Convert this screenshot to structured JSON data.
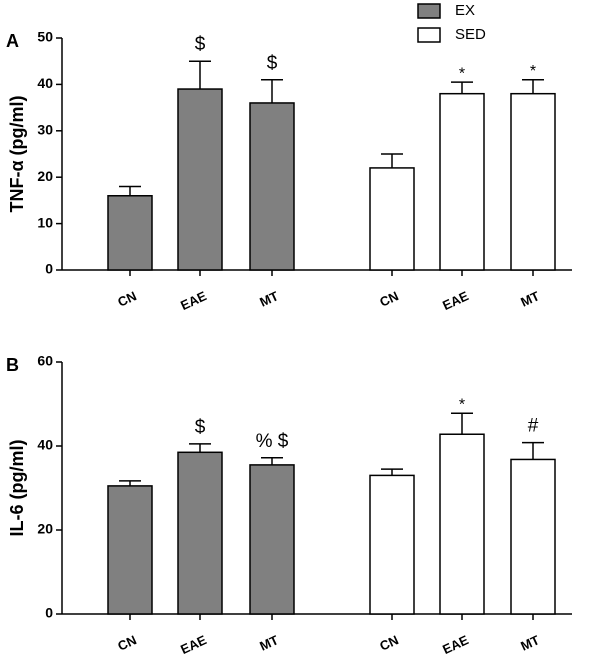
{
  "chart_data": [
    {
      "type": "bar",
      "panel": "A",
      "ylabel": "TNF-α (pg/ml)",
      "categories": [
        "CN",
        "EAE",
        "MT",
        "CN",
        "EAE",
        "MT"
      ],
      "ylim": [
        0,
        50
      ],
      "yticks": [
        0,
        10,
        20,
        30,
        40,
        50
      ],
      "series": [
        {
          "name": "EX",
          "color": "#808080",
          "values": [
            16,
            39,
            36,
            null,
            null,
            null
          ],
          "errors": [
            2,
            6,
            5,
            null,
            null,
            null
          ],
          "annotations": [
            null,
            "$",
            "$",
            null,
            null,
            null
          ]
        },
        {
          "name": "SED",
          "color": "#ffffff",
          "values": [
            null,
            null,
            null,
            22,
            38,
            38
          ],
          "errors": [
            null,
            null,
            null,
            3,
            2.5,
            3
          ],
          "annotations": [
            null,
            null,
            null,
            null,
            "*",
            "*"
          ]
        }
      ]
    },
    {
      "type": "bar",
      "panel": "B",
      "ylabel": "IL-6 (pg/ml)",
      "categories": [
        "CN",
        "EAE",
        "MT",
        "CN",
        "EAE",
        "MT"
      ],
      "ylim": [
        0,
        60
      ],
      "yticks": [
        0,
        20,
        40,
        60
      ],
      "series": [
        {
          "name": "EX",
          "color": "#808080",
          "values": [
            30.5,
            38.5,
            35.5,
            null,
            null,
            null
          ],
          "errors": [
            1.2,
            2,
            1.7,
            null,
            null,
            null
          ],
          "annotations": [
            null,
            "$",
            "% $",
            null,
            null,
            null
          ]
        },
        {
          "name": "SED",
          "color": "#ffffff",
          "values": [
            null,
            null,
            null,
            33,
            42.8,
            36.8
          ],
          "errors": [
            null,
            null,
            null,
            1.5,
            5,
            4
          ],
          "annotations": [
            null,
            null,
            null,
            null,
            "*",
            "#"
          ]
        }
      ]
    }
  ]
}
